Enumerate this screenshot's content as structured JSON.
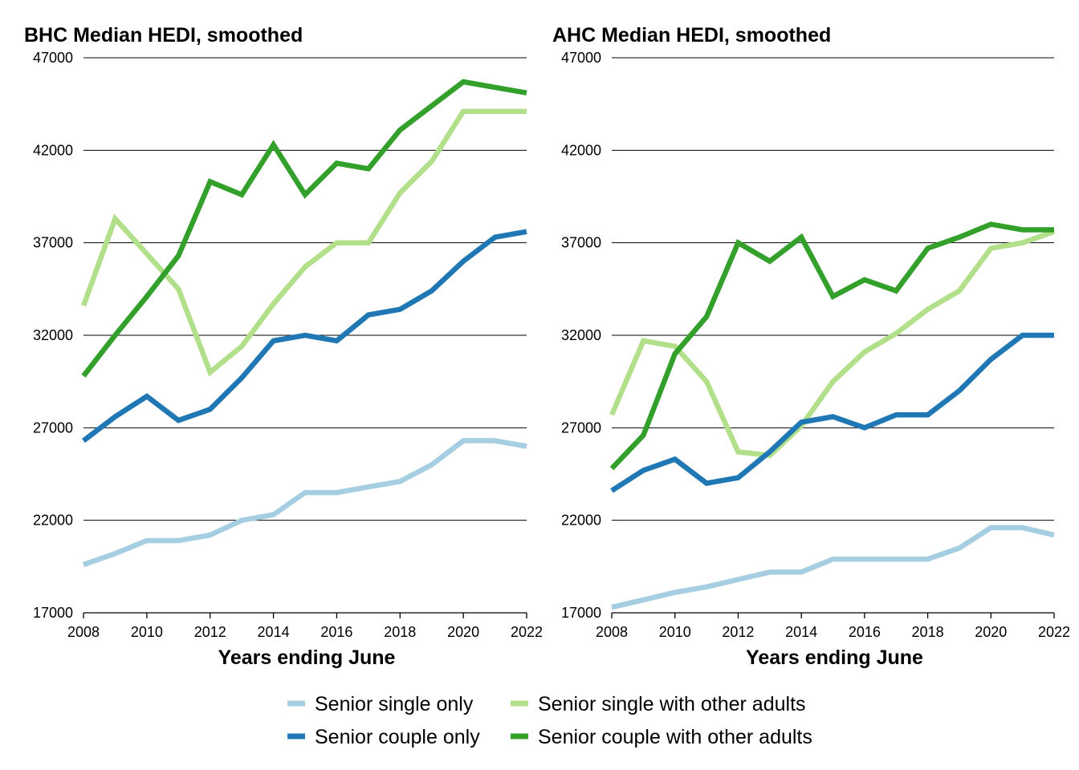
{
  "legend": [
    {
      "label": "Senior single only",
      "color": "#a6cee3"
    },
    {
      "label": "Senior single with other adults",
      "color": "#b2df8a"
    },
    {
      "label": "Senior couple only",
      "color": "#1f78b4"
    },
    {
      "label": "Senior couple with other adults",
      "color": "#33a02c"
    }
  ],
  "chart_data": [
    {
      "type": "line",
      "title": "BHC Median HEDI, smoothed",
      "xlabel": "Years ending June",
      "ylabel": "",
      "x": [
        2008,
        2009,
        2010,
        2011,
        2012,
        2013,
        2014,
        2015,
        2016,
        2017,
        2018,
        2019,
        2020,
        2021,
        2022
      ],
      "xticks": [
        2008,
        2010,
        2012,
        2014,
        2016,
        2018,
        2020,
        2022
      ],
      "yticks": [
        17000,
        22000,
        27000,
        32000,
        37000,
        42000,
        47000
      ],
      "xlim": [
        2008,
        2022
      ],
      "ylim": [
        17000,
        47000
      ],
      "grid": "horizontal",
      "series": [
        {
          "name": "Senior single only",
          "color": "#a6cee3",
          "values": [
            19600,
            20200,
            20900,
            20900,
            21200,
            22000,
            22300,
            23500,
            23500,
            23800,
            24100,
            25000,
            26300,
            26300,
            26000
          ]
        },
        {
          "name": "Senior single with other adults",
          "color": "#b2df8a",
          "values": [
            33600,
            38300,
            36400,
            34500,
            30000,
            31400,
            33700,
            35700,
            37000,
            37000,
            39700,
            41400,
            44100,
            44100,
            44100
          ]
        },
        {
          "name": "Senior couple only",
          "color": "#1f78b4",
          "values": [
            26300,
            27600,
            28700,
            27400,
            28000,
            29700,
            31700,
            32000,
            31700,
            33100,
            33400,
            34400,
            36000,
            37300,
            37600
          ]
        },
        {
          "name": "Senior couple with other adults",
          "color": "#33a02c",
          "values": [
            29800,
            32000,
            34100,
            36300,
            40300,
            39600,
            42300,
            39600,
            41300,
            41000,
            43100,
            44400,
            45700,
            45400,
            45100
          ]
        }
      ]
    },
    {
      "type": "line",
      "title": "AHC Median HEDI, smoothed",
      "xlabel": "Years ending June",
      "ylabel": "",
      "x": [
        2008,
        2009,
        2010,
        2011,
        2012,
        2013,
        2014,
        2015,
        2016,
        2017,
        2018,
        2019,
        2020,
        2021,
        2022
      ],
      "xticks": [
        2008,
        2010,
        2012,
        2014,
        2016,
        2018,
        2020,
        2022
      ],
      "yticks": [
        17000,
        22000,
        27000,
        32000,
        37000,
        42000,
        47000
      ],
      "xlim": [
        2008,
        2022
      ],
      "ylim": [
        17000,
        47000
      ],
      "grid": "horizontal",
      "series": [
        {
          "name": "Senior single only",
          "color": "#a6cee3",
          "values": [
            17300,
            17700,
            18100,
            18400,
            18800,
            19200,
            19200,
            19900,
            19900,
            19900,
            19900,
            20500,
            21600,
            21600,
            21200
          ]
        },
        {
          "name": "Senior single with other adults",
          "color": "#b2df8a",
          "values": [
            27700,
            31700,
            31400,
            29500,
            25700,
            25500,
            27100,
            29500,
            31100,
            32100,
            33400,
            34400,
            36700,
            37000,
            37600
          ]
        },
        {
          "name": "Senior couple only",
          "color": "#1f78b4",
          "values": [
            23600,
            24700,
            25300,
            24000,
            24300,
            25700,
            27300,
            27600,
            27000,
            27700,
            27700,
            29000,
            30700,
            32000,
            32000
          ]
        },
        {
          "name": "Senior couple with other adults",
          "color": "#33a02c",
          "values": [
            24800,
            26600,
            31000,
            33000,
            37000,
            36000,
            37300,
            34100,
            35000,
            34400,
            36700,
            37300,
            38000,
            37700,
            37700
          ]
        }
      ]
    }
  ]
}
